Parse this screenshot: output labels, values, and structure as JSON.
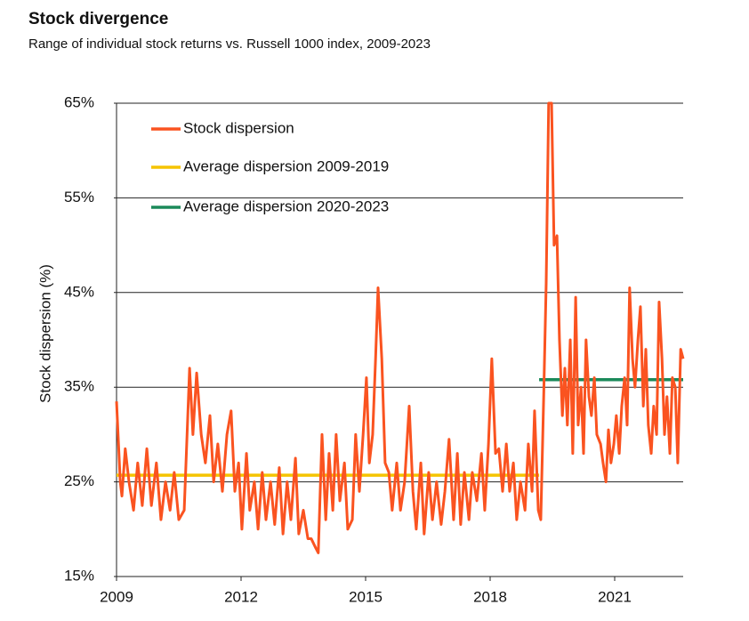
{
  "chart_data": {
    "type": "line",
    "title": "Stock divergence",
    "subtitle": "Range of individual stock returns vs. Russell 1000 index, 2009-2023",
    "y_label": "Stock dispersion (%)",
    "xlim": [
      2009,
      2022.65
    ],
    "xticks": [
      2009,
      2012,
      2015,
      2018,
      2021
    ],
    "ylim": [
      15,
      65
    ],
    "yticks": [
      {
        "value": 15,
        "label": "15%"
      },
      {
        "value": 25,
        "label": "25%"
      },
      {
        "value": 35,
        "label": "35%"
      },
      {
        "value": 45,
        "label": "45%"
      },
      {
        "value": 55,
        "label": "55%"
      },
      {
        "value": 65,
        "label": "65%"
      }
    ],
    "grid": true,
    "legend": "top-left",
    "series": [
      {
        "name": "Stock dispersion",
        "color": "#fa5320",
        "x": [
          2009.0,
          2009.09,
          2009.13,
          2009.21,
          2009.3,
          2009.41,
          2009.51,
          2009.62,
          2009.73,
          2009.84,
          2009.96,
          2010.07,
          2010.18,
          2010.29,
          2010.39,
          2010.5,
          2010.63,
          2010.76,
          2010.84,
          2010.93,
          2011.04,
          2011.14,
          2011.25,
          2011.34,
          2011.44,
          2011.55,
          2011.66,
          2011.76,
          2011.85,
          2011.94,
          2012.02,
          2012.13,
          2012.21,
          2012.32,
          2012.41,
          2012.51,
          2012.6,
          2012.71,
          2012.81,
          2012.92,
          2013.01,
          2013.11,
          2013.2,
          2013.31,
          2013.39,
          2013.5,
          2013.61,
          2013.69,
          2013.8,
          2013.86,
          2013.95,
          2014.04,
          2014.12,
          2014.21,
          2014.29,
          2014.38,
          2014.49,
          2014.57,
          2014.68,
          2014.76,
          2014.85,
          2014.94,
          2015.02,
          2015.09,
          2015.17,
          2015.24,
          2015.3,
          2015.39,
          2015.47,
          2015.56,
          2015.64,
          2015.75,
          2015.84,
          2015.94,
          2016.05,
          2016.14,
          2016.22,
          2016.33,
          2016.41,
          2016.52,
          2016.61,
          2016.71,
          2016.82,
          2016.91,
          2017.01,
          2017.12,
          2017.21,
          2017.29,
          2017.38,
          2017.49,
          2017.57,
          2017.68,
          2017.79,
          2017.87,
          2017.96,
          2018.04,
          2018.13,
          2018.21,
          2018.3,
          2018.39,
          2018.47,
          2018.56,
          2018.64,
          2018.73,
          2018.84,
          2018.92,
          2019.01,
          2019.07,
          2019.16,
          2019.22,
          2019.29,
          2019.35,
          2019.41,
          2019.48,
          2019.54,
          2019.61,
          2019.67,
          2019.74,
          2019.8,
          2019.86,
          2019.93,
          2019.99,
          2020.06,
          2020.12,
          2020.19,
          2020.25,
          2020.31,
          2020.38,
          2020.44,
          2020.51,
          2020.57,
          2020.66,
          2020.72,
          2020.79,
          2020.85,
          2020.91,
          2020.98,
          2021.04,
          2021.11,
          2021.17,
          2021.24,
          2021.3,
          2021.36,
          2021.43,
          2021.49,
          2021.56,
          2021.62,
          2021.69,
          2021.75,
          2021.81,
          2021.88,
          2021.94,
          2022.01,
          2022.07,
          2022.14,
          2022.2,
          2022.26,
          2022.33,
          2022.39,
          2022.46,
          2022.52,
          2022.59,
          2022.65
        ],
        "values": [
          33.5,
          25,
          23.5,
          28.5,
          25,
          22,
          27,
          22.5,
          28.5,
          22.5,
          27,
          21,
          25,
          22,
          26,
          21,
          22,
          37,
          30,
          36.5,
          30,
          27,
          32,
          25,
          29,
          24,
          30,
          32.5,
          24,
          27,
          20,
          28,
          22,
          25,
          20,
          26,
          21,
          25,
          20.5,
          26.5,
          19.5,
          25,
          21,
          27.5,
          19.5,
          22,
          19,
          19,
          18,
          17.5,
          30,
          21,
          28,
          22,
          30,
          23,
          27,
          20,
          21,
          30,
          24,
          30,
          36,
          27,
          30,
          38,
          45.5,
          38,
          27,
          26,
          22,
          27,
          22,
          25,
          33,
          24,
          20,
          27,
          19.5,
          26,
          21,
          25,
          20.5,
          24,
          29.5,
          21,
          28,
          20.5,
          26,
          21,
          26,
          23,
          28,
          22,
          29,
          38,
          28,
          28.5,
          24,
          29,
          24,
          27,
          21,
          25,
          22,
          29,
          24,
          32.5,
          22,
          21,
          34,
          46,
          65,
          65,
          50,
          51,
          40,
          32,
          37,
          31,
          40,
          28,
          44.5,
          31,
          35,
          28,
          40,
          34,
          32,
          36,
          30,
          29,
          27,
          25,
          30.5,
          27,
          29,
          32,
          28,
          33,
          36,
          31,
          45.5,
          38,
          35,
          40,
          43.5,
          33,
          39,
          31,
          28,
          33,
          30,
          44,
          38,
          30,
          34,
          28,
          36,
          35,
          27,
          39,
          38
        ]
      },
      {
        "name": "Average dispersion 2009-2019",
        "color": "#f5c400",
        "x": [
          2009,
          2019.18
        ],
        "values": [
          25.7,
          25.7
        ]
      },
      {
        "name": "Average dispersion 2020-2023",
        "color": "#1b8a5a",
        "x": [
          2019.18,
          2022.65
        ],
        "values": [
          35.8,
          35.8
        ]
      }
    ]
  }
}
